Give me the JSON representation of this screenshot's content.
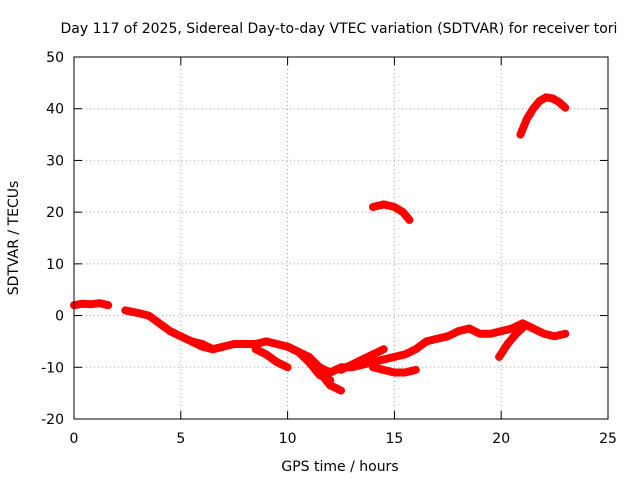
{
  "chart_data": {
    "type": "line",
    "title": "Day 117 of 2025, Sidereal Day-to-day VTEC variation (SDTVAR) for receiver tori",
    "xlabel": "GPS time / hours",
    "ylabel": "SDTVAR / TECUs",
    "xlim": [
      0,
      25
    ],
    "ylim": [
      -20,
      50
    ],
    "x_ticks": [
      0,
      5,
      10,
      15,
      20,
      25
    ],
    "y_ticks": [
      -20,
      -10,
      0,
      10,
      20,
      30,
      40,
      50
    ],
    "x_tick_labels": [
      "0",
      "5",
      "10",
      "15",
      "20",
      "25"
    ],
    "y_tick_labels": [
      "-20",
      "-10",
      "0",
      "10",
      "20",
      "30",
      "40",
      "50"
    ],
    "grid": true,
    "legend": "none",
    "series_color": "#ff0000",
    "series": [
      {
        "name": "segment-1",
        "x": [
          0.0,
          0.4,
          0.8,
          1.2,
          1.6
        ],
        "y": [
          2.0,
          2.3,
          2.2,
          2.4,
          2.0
        ]
      },
      {
        "name": "segment-2",
        "x": [
          2.4,
          3.0,
          3.5,
          4.0,
          4.5,
          5.0,
          5.5,
          6.0,
          6.5,
          7.0,
          7.5,
          8.0,
          8.5,
          9.0,
          9.5,
          10.0,
          10.5,
          11.0,
          11.5,
          12.0,
          12.5,
          13.0,
          13.5,
          14.0,
          14.5,
          15.0,
          15.5,
          16.0,
          16.5,
          17.0,
          17.5,
          18.0,
          18.5,
          19.0,
          19.5,
          20.0,
          20.5,
          21.0,
          21.5,
          22.0,
          22.5,
          23.0
        ],
        "y": [
          1.0,
          0.5,
          0.0,
          -1.5,
          -3.0,
          -4.0,
          -5.0,
          -6.0,
          -6.5,
          -6.0,
          -5.5,
          -5.5,
          -5.5,
          -5.0,
          -5.5,
          -6.0,
          -7.0,
          -8.0,
          -10.0,
          -11.0,
          -10.0,
          -10.0,
          -9.5,
          -9.0,
          -8.5,
          -8.0,
          -7.5,
          -6.5,
          -5.0,
          -4.5,
          -4.0,
          -3.0,
          -2.5,
          -3.5,
          -3.5,
          -3.0,
          -2.5,
          -1.5,
          -2.5,
          -3.5,
          -4.0,
          -3.5
        ]
      },
      {
        "name": "segment-3",
        "x": [
          5.5,
          6.0,
          6.5,
          7.0
        ],
        "y": [
          -5.0,
          -5.5,
          -6.5,
          -6.0
        ]
      },
      {
        "name": "segment-4",
        "x": [
          8.5,
          9.0,
          9.5,
          10.0
        ],
        "y": [
          -6.5,
          -7.5,
          -9.0,
          -10.0
        ]
      },
      {
        "name": "segment-5",
        "x": [
          10.0,
          10.5,
          11.0,
          11.5,
          12.0,
          12.5
        ],
        "y": [
          -6.0,
          -7.0,
          -9.0,
          -11.0,
          -13.5,
          -14.5
        ]
      },
      {
        "name": "segment-6",
        "x": [
          11.0,
          11.5,
          12.0
        ],
        "y": [
          -9.0,
          -11.5,
          -12.5
        ]
      },
      {
        "name": "segment-7",
        "x": [
          12.5,
          13.0,
          13.5,
          14.0,
          14.5
        ],
        "y": [
          -10.5,
          -9.5,
          -8.5,
          -7.5,
          -6.5
        ]
      },
      {
        "name": "segment-8",
        "x": [
          14.0,
          14.5,
          15.0,
          15.5,
          16.0
        ],
        "y": [
          -10.0,
          -10.5,
          -11.0,
          -11.0,
          -10.5
        ]
      },
      {
        "name": "segment-9",
        "x": [
          19.9,
          20.3,
          20.7,
          21.1
        ],
        "y": [
          -8.0,
          -5.5,
          -3.5,
          -2.0
        ]
      },
      {
        "name": "segment-10",
        "x": [
          14.0,
          14.5,
          15.0,
          15.4,
          15.7
        ],
        "y": [
          21.0,
          21.5,
          21.0,
          20.0,
          18.5
        ]
      },
      {
        "name": "segment-11",
        "x": [
          20.9,
          21.2,
          21.5,
          21.8,
          22.1,
          22.4,
          22.7,
          23.0
        ],
        "y": [
          35.0,
          38.0,
          40.0,
          41.5,
          42.2,
          42.0,
          41.3,
          40.2
        ]
      }
    ]
  }
}
